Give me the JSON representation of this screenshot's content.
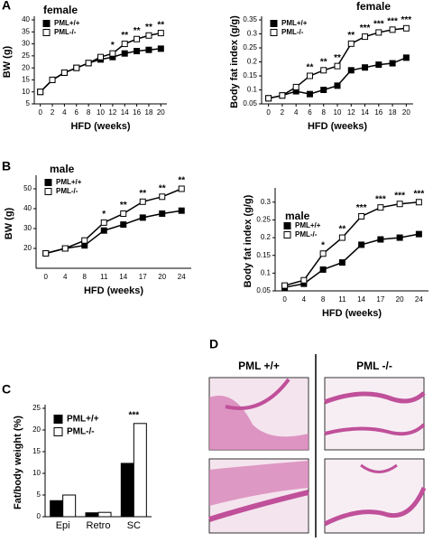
{
  "panels": {
    "labels": [
      "A",
      "B",
      "C",
      "D"
    ]
  },
  "histology": {
    "columns": [
      "PML +/+",
      "PML -/-"
    ]
  },
  "chart_data": [
    {
      "type": "line",
      "title": "female",
      "y_label": "BW (g)",
      "x_label": "HFD (weeks)",
      "x": [
        0,
        2,
        4,
        6,
        8,
        10,
        12,
        14,
        16,
        18,
        20
      ],
      "xlim": [
        -1,
        21
      ],
      "xticks": [
        0,
        2,
        4,
        6,
        8,
        10,
        12,
        14,
        16,
        18,
        20
      ],
      "ylim": [
        5,
        40
      ],
      "yticks": [
        5,
        10,
        15,
        20,
        25,
        30,
        35,
        40
      ],
      "legend": "upper left",
      "series": [
        {
          "name": "PML+/+",
          "color": "#000000",
          "values": [
            10,
            15,
            18,
            20,
            22,
            23.5,
            24.5,
            26,
            27,
            27.5,
            28
          ]
        },
        {
          "name": "PML-/-",
          "color": "#ffffff",
          "values": [
            10,
            15,
            18,
            20,
            22,
            24.5,
            26,
            30,
            32,
            33.5,
            34.5
          ]
        }
      ],
      "significance": [
        null,
        null,
        null,
        null,
        null,
        null,
        "*",
        "**",
        "**",
        "**",
        "**"
      ]
    },
    {
      "type": "line",
      "title": "female",
      "y_label": "Body fat index (g/g)",
      "x_label": "HFD (weeks)",
      "x": [
        0,
        2,
        4,
        6,
        8,
        10,
        12,
        14,
        16,
        18,
        20
      ],
      "xlim": [
        -1,
        21
      ],
      "xticks": [
        0,
        2,
        4,
        6,
        8,
        10,
        12,
        14,
        16,
        18,
        20
      ],
      "ylim": [
        0.05,
        0.35
      ],
      "yticks": [
        0.05,
        0.1,
        0.15,
        0.2,
        0.25,
        0.3,
        0.35
      ],
      "legend": "upper left",
      "series": [
        {
          "name": "PML+/+",
          "color": "#000000",
          "values": [
            0.07,
            0.08,
            0.095,
            0.085,
            0.1,
            0.115,
            0.17,
            0.18,
            0.19,
            0.195,
            0.215
          ]
        },
        {
          "name": "PML-/-",
          "color": "#ffffff",
          "values": [
            0.07,
            0.08,
            0.11,
            0.15,
            0.17,
            0.185,
            0.265,
            0.29,
            0.305,
            0.315,
            0.32
          ]
        }
      ],
      "significance": [
        null,
        null,
        null,
        "**",
        "**",
        "**",
        "**",
        "***",
        "***",
        "***",
        "***"
      ]
    },
    {
      "type": "line",
      "title": "male",
      "y_label": "BW (g)",
      "x_label": "HFD (weeks)",
      "categories": [
        "0",
        "4",
        "8",
        "11",
        "14",
        "17",
        "20",
        "24"
      ],
      "ylim": [
        10,
        55
      ],
      "yticks": [
        20,
        30,
        40,
        50
      ],
      "legend": "upper left",
      "series": [
        {
          "name": "PML+/+",
          "color": "#000000",
          "values": [
            17.5,
            20,
            21.5,
            29,
            32,
            35.5,
            37.5,
            39
          ]
        },
        {
          "name": "PML-/-",
          "color": "#ffffff",
          "values": [
            17.5,
            20,
            24,
            33,
            37.5,
            43.5,
            46,
            50
          ]
        }
      ],
      "significance": [
        null,
        null,
        null,
        "*",
        "**",
        "**",
        "**",
        "**"
      ]
    },
    {
      "type": "line",
      "title": "male",
      "y_label": "Body fat index (g/g)",
      "x_label": "HFD (weeks)",
      "categories": [
        "0",
        "4",
        "8",
        "11",
        "14",
        "17",
        "20",
        "24"
      ],
      "ylim": [
        0.05,
        0.33
      ],
      "yticks": [
        0.05,
        0.1,
        0.15,
        0.2,
        0.25,
        0.3
      ],
      "legend": "upper left",
      "series": [
        {
          "name": "PML+/+",
          "color": "#000000",
          "values": [
            0.06,
            0.07,
            0.11,
            0.13,
            0.18,
            0.195,
            0.2,
            0.21
          ]
        },
        {
          "name": "PML-/-",
          "color": "#ffffff",
          "values": [
            0.065,
            0.08,
            0.155,
            0.2,
            0.26,
            0.285,
            0.295,
            0.3
          ]
        }
      ],
      "significance": [
        null,
        null,
        "*",
        "**",
        "***",
        "***",
        "***",
        "***"
      ]
    },
    {
      "type": "bar",
      "y_label": "Fat/body weight (%)",
      "categories": [
        "Epi",
        "Retro",
        "SC"
      ],
      "ylim": [
        0,
        25
      ],
      "yticks": [
        0,
        5,
        10,
        15,
        20,
        25
      ],
      "legend": "upper left",
      "series": [
        {
          "name": "PML+/+",
          "color": "#000000",
          "values": [
            3.7,
            0.9,
            12.3
          ]
        },
        {
          "name": "PML-/-",
          "color": "#ffffff",
          "values": [
            5,
            1,
            21.5
          ]
        }
      ],
      "significance": [
        null,
        null,
        "***"
      ]
    }
  ]
}
